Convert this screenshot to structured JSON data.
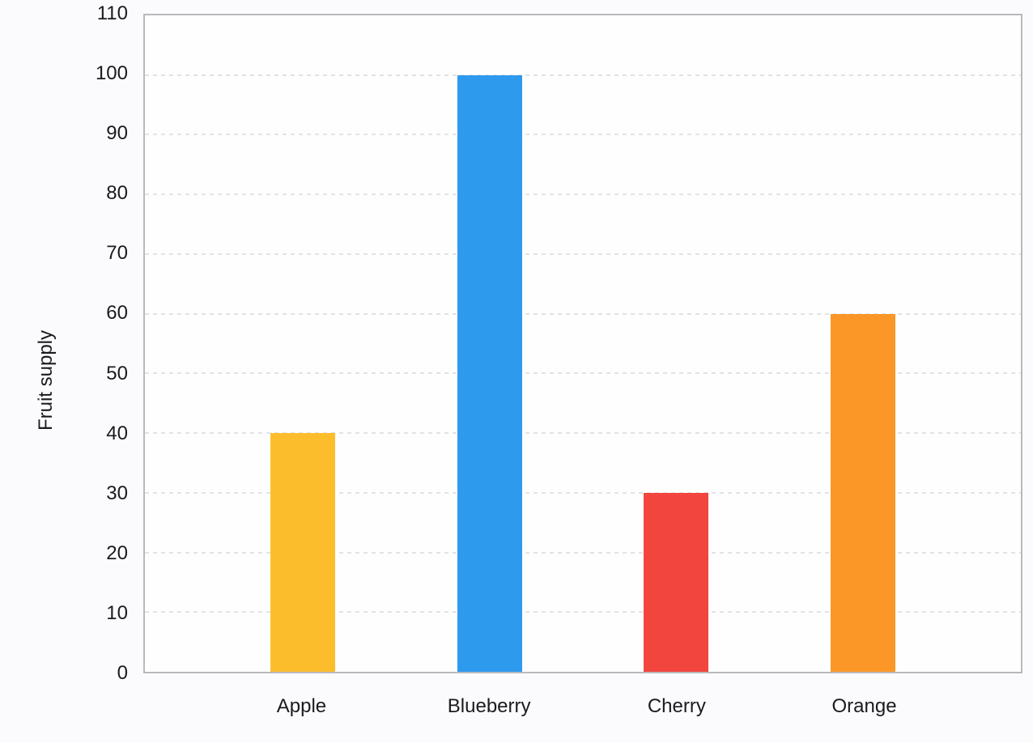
{
  "chart_data": {
    "type": "bar",
    "title": "",
    "categories": [
      "Apple",
      "Blueberry",
      "Cherry",
      "Orange"
    ],
    "values": [
      40,
      100,
      30,
      60
    ],
    "bar_colors": [
      "#fcbd2d",
      "#2d9aee",
      "#f2453d",
      "#fb9727"
    ],
    "xlabel": "",
    "ylabel": "Fruit supply",
    "ylim": [
      0,
      110
    ],
    "yticks": [
      0,
      10,
      20,
      30,
      40,
      50,
      60,
      70,
      80,
      90,
      100,
      110
    ],
    "grid": "horizontal-dashed",
    "legend": "none"
  },
  "colors": {
    "page_bg": "#fbfbfe",
    "plot_bg": "#fefeff",
    "plot_border": "#b9b9bd",
    "gridline": "#e3e3e6",
    "text": "#1b1b1f"
  }
}
